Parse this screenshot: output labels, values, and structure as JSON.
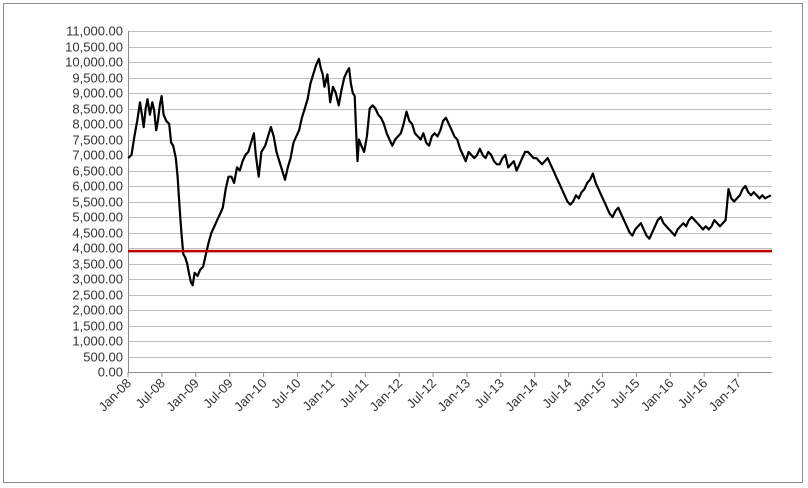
{
  "chart_data": {
    "type": "line",
    "title": "",
    "xlabel": "",
    "ylabel": "",
    "ylim": [
      0,
      11000
    ],
    "xlim": [
      "2008-01",
      "2017-07"
    ],
    "grid": "horizontal",
    "y_ticks": [
      0,
      500,
      1000,
      1500,
      2000,
      2500,
      3000,
      3500,
      4000,
      4500,
      5000,
      5500,
      6000,
      6500,
      7000,
      7500,
      8000,
      8500,
      9000,
      9500,
      10000,
      10500,
      11000
    ],
    "y_tick_labels": [
      "0.00",
      "500.00",
      "1,000.00",
      "1,500.00",
      "2,000.00",
      "2,500.00",
      "3,000.00",
      "3,500.00",
      "4,000.00",
      "4,500.00",
      "5,000.00",
      "5,500.00",
      "6,000.00",
      "6,500.00",
      "7,000.00",
      "7,500.00",
      "8,000.00",
      "8,500.00",
      "9,000.00",
      "9,500.00",
      "10,000.00",
      "10,500.00",
      "11,000.00"
    ],
    "x_ticks": [
      "2008-01",
      "2008-07",
      "2009-01",
      "2009-07",
      "2010-01",
      "2010-07",
      "2011-01",
      "2011-07",
      "2012-01",
      "2012-07",
      "2013-01",
      "2013-07",
      "2014-01",
      "2014-07",
      "2015-01",
      "2015-07",
      "2016-01",
      "2016-07",
      "2017-01"
    ],
    "x_tick_labels": [
      "Jan-08",
      "Jul-08",
      "Jan-09",
      "Jul-09",
      "Jan-10",
      "Jul-10",
      "Jan-11",
      "Jul-11",
      "Jan-12",
      "Jul-12",
      "Jan-13",
      "Jul-13",
      "Jan-14",
      "Jul-14",
      "Jan-15",
      "Jul-15",
      "Jan-16",
      "Jul-16",
      "Jan-17"
    ],
    "series": [
      {
        "color": "#000000",
        "points": [
          [
            "2008-01-02",
            6900
          ],
          [
            "2008-01-20",
            7000
          ],
          [
            "2008-02-05",
            7600
          ],
          [
            "2008-02-20",
            8100
          ],
          [
            "2008-03-05",
            8700
          ],
          [
            "2008-03-15",
            8300
          ],
          [
            "2008-03-25",
            7900
          ],
          [
            "2008-04-05",
            8500
          ],
          [
            "2008-04-15",
            8800
          ],
          [
            "2008-04-28",
            8300
          ],
          [
            "2008-05-10",
            8700
          ],
          [
            "2008-05-20",
            8450
          ],
          [
            "2008-06-01",
            7800
          ],
          [
            "2008-06-10",
            8100
          ],
          [
            "2008-06-20",
            8600
          ],
          [
            "2008-06-30",
            8900
          ],
          [
            "2008-07-10",
            8300
          ],
          [
            "2008-07-25",
            8100
          ],
          [
            "2008-08-10",
            8000
          ],
          [
            "2008-08-20",
            7400
          ],
          [
            "2008-09-01",
            7300
          ],
          [
            "2008-09-15",
            6900
          ],
          [
            "2008-09-25",
            6300
          ],
          [
            "2008-10-05",
            5300
          ],
          [
            "2008-10-15",
            4500
          ],
          [
            "2008-10-25",
            3800
          ],
          [
            "2008-11-05",
            3700
          ],
          [
            "2008-11-15",
            3500
          ],
          [
            "2008-11-25",
            3200
          ],
          [
            "2008-12-05",
            2900
          ],
          [
            "2008-12-15",
            2800
          ],
          [
            "2008-12-25",
            3200
          ],
          [
            "2009-01-10",
            3100
          ],
          [
            "2009-01-25",
            3300
          ],
          [
            "2009-02-10",
            3400
          ],
          [
            "2009-02-25",
            3800
          ],
          [
            "2009-03-10",
            4200
          ],
          [
            "2009-03-25",
            4500
          ],
          [
            "2009-04-10",
            4700
          ],
          [
            "2009-04-25",
            4900
          ],
          [
            "2009-05-10",
            5100
          ],
          [
            "2009-05-25",
            5300
          ],
          [
            "2009-06-10",
            5900
          ],
          [
            "2009-06-25",
            6300
          ],
          [
            "2009-07-10",
            6300
          ],
          [
            "2009-07-25",
            6100
          ],
          [
            "2009-08-10",
            6600
          ],
          [
            "2009-08-25",
            6500
          ],
          [
            "2009-09-10",
            6800
          ],
          [
            "2009-09-25",
            7000
          ],
          [
            "2009-10-10",
            7100
          ],
          [
            "2009-10-25",
            7400
          ],
          [
            "2009-11-10",
            7700
          ],
          [
            "2009-11-20",
            7000
          ],
          [
            "2009-12-05",
            6300
          ],
          [
            "2009-12-20",
            7100
          ],
          [
            "2010-01-10",
            7300
          ],
          [
            "2010-01-25",
            7600
          ],
          [
            "2010-02-10",
            7900
          ],
          [
            "2010-02-25",
            7600
          ],
          [
            "2010-03-10",
            7100
          ],
          [
            "2010-03-25",
            6800
          ],
          [
            "2010-04-10",
            6500
          ],
          [
            "2010-04-25",
            6200
          ],
          [
            "2010-05-10",
            6600
          ],
          [
            "2010-05-25",
            6900
          ],
          [
            "2010-06-10",
            7400
          ],
          [
            "2010-06-25",
            7600
          ],
          [
            "2010-07-10",
            7800
          ],
          [
            "2010-07-25",
            8200
          ],
          [
            "2010-08-10",
            8500
          ],
          [
            "2010-08-25",
            8800
          ],
          [
            "2010-09-10",
            9300
          ],
          [
            "2010-09-25",
            9600
          ],
          [
            "2010-10-10",
            9900
          ],
          [
            "2010-10-25",
            10100
          ],
          [
            "2010-11-05",
            9800
          ],
          [
            "2010-11-15",
            9600
          ],
          [
            "2010-11-25",
            9200
          ],
          [
            "2010-12-10",
            9600
          ],
          [
            "2010-12-25",
            8700
          ],
          [
            "2011-01-10",
            9200
          ],
          [
            "2011-01-25",
            9000
          ],
          [
            "2011-02-10",
            8600
          ],
          [
            "2011-02-25",
            9100
          ],
          [
            "2011-03-10",
            9500
          ],
          [
            "2011-03-25",
            9700
          ],
          [
            "2011-04-05",
            9800
          ],
          [
            "2011-04-15",
            9300
          ],
          [
            "2011-04-25",
            9000
          ],
          [
            "2011-05-05",
            8900
          ],
          [
            "2011-05-15",
            7400
          ],
          [
            "2011-05-20",
            6800
          ],
          [
            "2011-05-28",
            7500
          ],
          [
            "2011-06-10",
            7300
          ],
          [
            "2011-06-25",
            7100
          ],
          [
            "2011-07-10",
            7600
          ],
          [
            "2011-07-25",
            8500
          ],
          [
            "2011-08-10",
            8600
          ],
          [
            "2011-08-25",
            8500
          ],
          [
            "2011-09-10",
            8300
          ],
          [
            "2011-09-25",
            8200
          ],
          [
            "2011-10-10",
            8000
          ],
          [
            "2011-10-25",
            7700
          ],
          [
            "2011-11-10",
            7500
          ],
          [
            "2011-11-25",
            7300
          ],
          [
            "2011-12-10",
            7500
          ],
          [
            "2011-12-25",
            7600
          ],
          [
            "2012-01-10",
            7700
          ],
          [
            "2012-01-25",
            8000
          ],
          [
            "2012-02-10",
            8400
          ],
          [
            "2012-02-25",
            8100
          ],
          [
            "2012-03-10",
            8000
          ],
          [
            "2012-03-25",
            7700
          ],
          [
            "2012-04-10",
            7600
          ],
          [
            "2012-04-25",
            7500
          ],
          [
            "2012-05-10",
            7700
          ],
          [
            "2012-05-25",
            7400
          ],
          [
            "2012-06-10",
            7300
          ],
          [
            "2012-06-25",
            7600
          ],
          [
            "2012-07-10",
            7700
          ],
          [
            "2012-07-25",
            7600
          ],
          [
            "2012-08-10",
            7800
          ],
          [
            "2012-08-25",
            8100
          ],
          [
            "2012-09-10",
            8200
          ],
          [
            "2012-09-25",
            8000
          ],
          [
            "2012-10-10",
            7800
          ],
          [
            "2012-10-25",
            7600
          ],
          [
            "2012-11-10",
            7500
          ],
          [
            "2012-11-25",
            7200
          ],
          [
            "2012-12-10",
            7000
          ],
          [
            "2012-12-25",
            6800
          ],
          [
            "2013-01-10",
            7100
          ],
          [
            "2013-01-25",
            7000
          ],
          [
            "2013-02-10",
            6900
          ],
          [
            "2013-02-25",
            7000
          ],
          [
            "2013-03-10",
            7200
          ],
          [
            "2013-03-25",
            7000
          ],
          [
            "2013-04-10",
            6900
          ],
          [
            "2013-04-25",
            7100
          ],
          [
            "2013-05-10",
            7000
          ],
          [
            "2013-05-25",
            6800
          ],
          [
            "2013-06-10",
            6700
          ],
          [
            "2013-06-25",
            6700
          ],
          [
            "2013-07-10",
            6900
          ],
          [
            "2013-07-25",
            7000
          ],
          [
            "2013-08-10",
            6600
          ],
          [
            "2013-08-25",
            6700
          ],
          [
            "2013-09-10",
            6800
          ],
          [
            "2013-09-25",
            6500
          ],
          [
            "2013-10-10",
            6700
          ],
          [
            "2013-10-25",
            6900
          ],
          [
            "2013-11-10",
            7100
          ],
          [
            "2013-11-25",
            7100
          ],
          [
            "2013-12-10",
            7000
          ],
          [
            "2013-12-25",
            6900
          ],
          [
            "2014-01-10",
            6900
          ],
          [
            "2014-01-25",
            6800
          ],
          [
            "2014-02-10",
            6700
          ],
          [
            "2014-02-25",
            6800
          ],
          [
            "2014-03-10",
            6900
          ],
          [
            "2014-03-25",
            6700
          ],
          [
            "2014-04-10",
            6500
          ],
          [
            "2014-04-25",
            6300
          ],
          [
            "2014-05-10",
            6100
          ],
          [
            "2014-05-25",
            5900
          ],
          [
            "2014-06-10",
            5700
          ],
          [
            "2014-06-25",
            5500
          ],
          [
            "2014-07-10",
            5400
          ],
          [
            "2014-07-25",
            5500
          ],
          [
            "2014-08-10",
            5700
          ],
          [
            "2014-08-25",
            5600
          ],
          [
            "2014-09-10",
            5800
          ],
          [
            "2014-09-25",
            5900
          ],
          [
            "2014-10-10",
            6100
          ],
          [
            "2014-10-25",
            6200
          ],
          [
            "2014-11-10",
            6400
          ],
          [
            "2014-11-25",
            6100
          ],
          [
            "2014-12-10",
            5900
          ],
          [
            "2014-12-25",
            5700
          ],
          [
            "2015-01-10",
            5500
          ],
          [
            "2015-01-25",
            5300
          ],
          [
            "2015-02-10",
            5100
          ],
          [
            "2015-02-25",
            5000
          ],
          [
            "2015-03-10",
            5200
          ],
          [
            "2015-03-25",
            5300
          ],
          [
            "2015-04-10",
            5100
          ],
          [
            "2015-04-25",
            4900
          ],
          [
            "2015-05-10",
            4700
          ],
          [
            "2015-05-25",
            4500
          ],
          [
            "2015-06-10",
            4400
          ],
          [
            "2015-06-25",
            4600
          ],
          [
            "2015-07-10",
            4700
          ],
          [
            "2015-07-25",
            4800
          ],
          [
            "2015-08-10",
            4600
          ],
          [
            "2015-08-25",
            4400
          ],
          [
            "2015-09-10",
            4300
          ],
          [
            "2015-09-25",
            4500
          ],
          [
            "2015-10-10",
            4700
          ],
          [
            "2015-10-25",
            4900
          ],
          [
            "2015-11-10",
            5000
          ],
          [
            "2015-11-25",
            4800
          ],
          [
            "2015-12-10",
            4700
          ],
          [
            "2015-12-25",
            4600
          ],
          [
            "2016-01-10",
            4500
          ],
          [
            "2016-01-25",
            4400
          ],
          [
            "2016-02-10",
            4600
          ],
          [
            "2016-02-25",
            4700
          ],
          [
            "2016-03-10",
            4800
          ],
          [
            "2016-03-25",
            4700
          ],
          [
            "2016-04-10",
            4900
          ],
          [
            "2016-04-25",
            5000
          ],
          [
            "2016-05-10",
            4900
          ],
          [
            "2016-05-25",
            4800
          ],
          [
            "2016-06-10",
            4700
          ],
          [
            "2016-06-25",
            4600
          ],
          [
            "2016-07-10",
            4700
          ],
          [
            "2016-07-25",
            4600
          ],
          [
            "2016-08-10",
            4700
          ],
          [
            "2016-08-25",
            4900
          ],
          [
            "2016-09-10",
            4800
          ],
          [
            "2016-09-25",
            4700
          ],
          [
            "2016-10-10",
            4800
          ],
          [
            "2016-10-25",
            4900
          ],
          [
            "2016-11-10",
            5900
          ],
          [
            "2016-11-25",
            5600
          ],
          [
            "2016-12-10",
            5500
          ],
          [
            "2016-12-25",
            5600
          ],
          [
            "2017-01-10",
            5700
          ],
          [
            "2017-01-25",
            5900
          ],
          [
            "2017-02-10",
            6000
          ],
          [
            "2017-02-25",
            5800
          ],
          [
            "2017-03-10",
            5700
          ],
          [
            "2017-03-25",
            5800
          ],
          [
            "2017-04-10",
            5700
          ],
          [
            "2017-04-25",
            5600
          ],
          [
            "2017-05-10",
            5700
          ],
          [
            "2017-05-25",
            5600
          ],
          [
            "2017-06-10",
            5650
          ],
          [
            "2017-06-25",
            5700
          ]
        ]
      }
    ],
    "reference_line": {
      "value": 3900,
      "color": "#c00000"
    }
  }
}
